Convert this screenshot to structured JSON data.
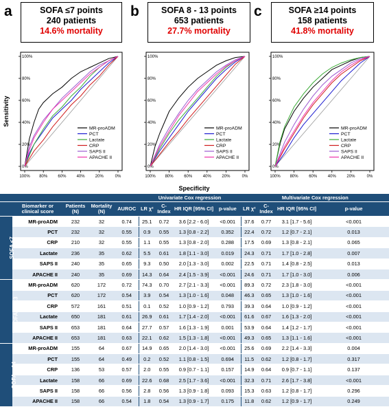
{
  "panels": [
    {
      "letter": "a",
      "title": "SOFA ≤7 points",
      "patients": "240 patients",
      "mortality": "14.6% mortality"
    },
    {
      "letter": "b",
      "title": "SOFA 8 - 13 points",
      "patients": "653 patients",
      "mortality": "27.7% mortality"
    },
    {
      "letter": "c",
      "title": "SOFA ≥14 points",
      "patients": "158 patients",
      "mortality": "41.8% mortality"
    }
  ],
  "axes": {
    "ylabel": "Sensitivity",
    "xlabel": "Specificity"
  },
  "chart_data": [
    {
      "type": "line",
      "panel": "a",
      "x_ticks": [
        "100%",
        "80%",
        "60%",
        "40%",
        "20%",
        "0%"
      ],
      "y_ticks": [
        "100%",
        "80%",
        "60%",
        "40%",
        "20%",
        "0%"
      ],
      "xlim": [
        100,
        0
      ],
      "ylim": [
        0,
        100
      ],
      "diagonal": true,
      "legend": "bottom-right",
      "series": [
        {
          "name": "MR-proADM",
          "color": "#000000",
          "x": [
            100,
            95,
            90,
            85,
            80,
            70,
            60,
            50,
            40,
            30,
            20,
            10,
            0
          ],
          "y": [
            0,
            25,
            40,
            52,
            58,
            66,
            72,
            80,
            86,
            90,
            94,
            98,
            100
          ]
        },
        {
          "name": "PCT",
          "color": "#1a1ad0",
          "x": [
            100,
            95,
            90,
            80,
            70,
            60,
            50,
            40,
            30,
            20,
            10,
            0
          ],
          "y": [
            0,
            12,
            20,
            32,
            44,
            52,
            60,
            70,
            78,
            86,
            94,
            100
          ]
        },
        {
          "name": "Lactate",
          "color": "#3aaa35",
          "x": [
            100,
            95,
            90,
            80,
            70,
            60,
            50,
            40,
            30,
            20,
            10,
            0
          ],
          "y": [
            0,
            10,
            20,
            34,
            46,
            54,
            64,
            72,
            82,
            90,
            96,
            100
          ]
        },
        {
          "name": "CRP",
          "color": "#d01a1a",
          "x": [
            100,
            90,
            80,
            70,
            60,
            50,
            40,
            30,
            20,
            10,
            0
          ],
          "y": [
            0,
            14,
            24,
            36,
            46,
            56,
            64,
            74,
            82,
            92,
            100
          ]
        },
        {
          "name": "SAPS II",
          "color": "#9b59d0",
          "x": [
            100,
            95,
            90,
            80,
            70,
            60,
            50,
            40,
            30,
            20,
            10,
            0
          ],
          "y": [
            0,
            18,
            28,
            42,
            52,
            62,
            70,
            78,
            86,
            92,
            96,
            100
          ]
        },
        {
          "name": "APACHE II",
          "color": "#ee33aa",
          "x": [
            100,
            95,
            90,
            80,
            70,
            60,
            50,
            40,
            30,
            20,
            10,
            0
          ],
          "y": [
            0,
            15,
            26,
            40,
            52,
            60,
            68,
            76,
            84,
            90,
            96,
            100
          ]
        }
      ]
    },
    {
      "type": "line",
      "panel": "b",
      "x_ticks": [
        "100%",
        "80%",
        "60%",
        "40%",
        "20%",
        "0%"
      ],
      "y_ticks": [
        "100%",
        "80%",
        "60%",
        "40%",
        "20%",
        "0%"
      ],
      "xlim": [
        100,
        0
      ],
      "ylim": [
        0,
        100
      ],
      "diagonal": true,
      "legend": "bottom-right",
      "series": [
        {
          "name": "MR-proADM",
          "color": "#000000",
          "x": [
            100,
            95,
            90,
            85,
            80,
            70,
            60,
            50,
            40,
            30,
            20,
            10,
            0
          ],
          "y": [
            0,
            18,
            30,
            40,
            50,
            62,
            72,
            80,
            86,
            92,
            96,
            99,
            100
          ]
        },
        {
          "name": "PCT",
          "color": "#1a1ad0",
          "x": [
            100,
            90,
            80,
            70,
            60,
            50,
            40,
            30,
            20,
            10,
            0
          ],
          "y": [
            0,
            14,
            26,
            38,
            50,
            60,
            70,
            80,
            88,
            95,
            100
          ]
        },
        {
          "name": "Lactate",
          "color": "#3aaa35",
          "x": [
            100,
            90,
            80,
            70,
            60,
            50,
            40,
            30,
            20,
            10,
            0
          ],
          "y": [
            0,
            16,
            30,
            42,
            52,
            62,
            72,
            82,
            90,
            96,
            100
          ]
        },
        {
          "name": "CRP",
          "color": "#d01a1a",
          "x": [
            100,
            90,
            80,
            70,
            60,
            50,
            40,
            30,
            20,
            10,
            0
          ],
          "y": [
            0,
            11,
            22,
            32,
            43,
            53,
            63,
            73,
            83,
            93,
            100
          ]
        },
        {
          "name": "SAPS II",
          "color": "#9b59d0",
          "x": [
            100,
            90,
            80,
            70,
            60,
            50,
            40,
            30,
            20,
            10,
            0
          ],
          "y": [
            0,
            20,
            35,
            48,
            60,
            70,
            78,
            86,
            92,
            97,
            100
          ]
        },
        {
          "name": "APACHE II",
          "color": "#ee33aa",
          "x": [
            100,
            90,
            80,
            70,
            60,
            50,
            40,
            30,
            20,
            10,
            0
          ],
          "y": [
            0,
            18,
            32,
            46,
            57,
            68,
            76,
            84,
            91,
            96,
            100
          ]
        }
      ]
    },
    {
      "type": "line",
      "panel": "c",
      "x_ticks": [
        "100%",
        "80%",
        "60%",
        "40%",
        "20%",
        "0%"
      ],
      "y_ticks": [
        "100%",
        "80%",
        "60%",
        "40%",
        "20%",
        "0%"
      ],
      "xlim": [
        100,
        0
      ],
      "ylim": [
        0,
        100
      ],
      "diagonal": true,
      "legend": "bottom-right",
      "series": [
        {
          "name": "MR-proADM",
          "color": "#000000",
          "x": [
            100,
            95,
            90,
            80,
            70,
            60,
            50,
            40,
            30,
            20,
            10,
            0
          ],
          "y": [
            0,
            20,
            34,
            50,
            62,
            72,
            80,
            88,
            92,
            96,
            99,
            100
          ]
        },
        {
          "name": "PCT",
          "color": "#1a1ad0",
          "x": [
            100,
            90,
            80,
            70,
            60,
            50,
            40,
            30,
            20,
            10,
            0
          ],
          "y": [
            0,
            12,
            26,
            38,
            48,
            58,
            68,
            78,
            86,
            94,
            100
          ]
        },
        {
          "name": "Lactate",
          "color": "#3aaa35",
          "x": [
            100,
            95,
            90,
            80,
            70,
            60,
            50,
            40,
            30,
            20,
            10,
            0
          ],
          "y": [
            0,
            22,
            36,
            54,
            66,
            76,
            84,
            90,
            94,
            97,
            99,
            100
          ]
        },
        {
          "name": "CRP",
          "color": "#d01a1a",
          "x": [
            100,
            90,
            80,
            70,
            60,
            50,
            40,
            30,
            20,
            10,
            0
          ],
          "y": [
            0,
            16,
            30,
            44,
            56,
            66,
            76,
            84,
            90,
            96,
            100
          ]
        },
        {
          "name": "SAPS II",
          "color": "#9b59d0",
          "x": [
            100,
            90,
            80,
            70,
            60,
            50,
            40,
            30,
            20,
            10,
            0
          ],
          "y": [
            0,
            22,
            38,
            52,
            64,
            74,
            82,
            88,
            94,
            98,
            100
          ]
        },
        {
          "name": "APACHE II",
          "color": "#ee33aa",
          "x": [
            100,
            90,
            80,
            70,
            60,
            50,
            40,
            30,
            20,
            10,
            0
          ],
          "y": [
            0,
            18,
            32,
            46,
            58,
            68,
            78,
            86,
            92,
            97,
            100
          ]
        }
      ]
    },
    {
      "type": "table",
      "header_groups": {
        "uni": "Univariate Cox regression",
        "multi": "Multivariate Cox regression"
      },
      "columns": {
        "group": "",
        "marker": "Biomarker or clinical score",
        "patients": "Patients (N)",
        "mortality": "Mortality (N)",
        "auroc": "AUROC",
        "lr": "LR χ²",
        "cindex": "C-Index",
        "hr": "HR IQR [95% CI]",
        "p": "p-value"
      },
      "groups": [
        {
          "name": "SOFA ≤7",
          "rows": [
            [
              "MR-proADM",
              "232",
              "32",
              "0.74",
              "25.1",
              "0.72",
              "3.6 [2.2 - 6.0]",
              "<0.001",
              "37.6",
              "0.77",
              "3.1 [1.7 - 5.6]",
              "<0.001"
            ],
            [
              "PCT",
              "232",
              "32",
              "0.55",
              "0.9",
              "0.55",
              "1.3 [0.8 - 2.2]",
              "0.352",
              "22.4",
              "0.72",
              "1.2 [0.7 - 2.1]",
              "0.013"
            ],
            [
              "CRP",
              "210",
              "32",
              "0.55",
              "1.1",
              "0.55",
              "1.3 [0.8 - 2.0]",
              "0.288",
              "17.5",
              "0.69",
              "1.3 [0.8 - 2.1]",
              "0.065"
            ],
            [
              "Lactate",
              "236",
              "35",
              "0.62",
              "5.5",
              "0.61",
              "1.8 [1.1 - 3.0]",
              "0.019",
              "24.3",
              "0.71",
              "1.7 [1.0 - 2.8]",
              "0.007"
            ],
            [
              "SAPS II",
              "240",
              "35",
              "0.65",
              "9.3",
              "0.50",
              "2.0 [1.3 - 3.0]",
              "0.002",
              "22.5",
              "0.71",
              "1.4 [0.8 - 2.5]",
              "0.013"
            ],
            [
              "APACHE II",
              "240",
              "35",
              "0.69",
              "14.3",
              "0.64",
              "2.4 [1.5 - 3.9]",
              "<0.001",
              "24.6",
              "0.71",
              "1.7 [1.0 - 3.0]",
              "0.006"
            ]
          ]
        },
        {
          "name": "SOFA 8 - 13",
          "rows": [
            [
              "MR-proADM",
              "620",
              "172",
              "0.72",
              "74.3",
              "0.70",
              "2.7 [2.1 - 3.3]",
              "<0.001",
              "89.3",
              "0.72",
              "2.3 [1.8 - 3.0]",
              "<0.001"
            ],
            [
              "PCT",
              "620",
              "172",
              "0.54",
              "3.9",
              "0.54",
              "1.3 [1.0 - 1.6]",
              "0.048",
              "46.3",
              "0.65",
              "1.3 [1.0 - 1.6]",
              "<0.001"
            ],
            [
              "CRP",
              "572",
              "161",
              "0.51",
              "0.1",
              "0.52",
              "1.0 [0.9 - 1.2]",
              "0.793",
              "39.3",
              "0.64",
              "1.0 [0.9 - 1.2]",
              "<0.001"
            ],
            [
              "Lactate",
              "650",
              "181",
              "0.61",
              "26.9",
              "0.61",
              "1.7 [1.4 - 2.0]",
              "<0.001",
              "61.6",
              "0.67",
              "1.6 [1.3 - 2.0]",
              "<0.001"
            ],
            [
              "SAPS II",
              "653",
              "181",
              "0.64",
              "27.7",
              "0.57",
              "1.6 [1.3 - 1.9]",
              "0.001",
              "53.9",
              "0.64",
              "1.4 [1.2 - 1.7]",
              "<0.001"
            ],
            [
              "APACHE II",
              "653",
              "181",
              "0.63",
              "22.1",
              "0.62",
              "1.5 [1.3 - 1.8]",
              "<0.001",
              "49.3",
              "0.65",
              "1.3 [1.1 - 1.6]",
              "<0.001"
            ]
          ]
        },
        {
          "name": "SOFA ≥ 14",
          "rows": [
            [
              "MR-proADM",
              "155",
              "64",
              "0.67",
              "14.9",
              "0.65",
              "2.0 [1.4 - 3.0]",
              "<0.001",
              "25.6",
              "0.69",
              "2.2 [1.4 - 3.3]",
              "0.004"
            ],
            [
              "PCT",
              "155",
              "64",
              "0.49",
              "0.2",
              "0.52",
              "1.1 [0.8 - 1.5]",
              "0.694",
              "11.5",
              "0.62",
              "1.2 [0.8 - 1.7]",
              "0.317"
            ],
            [
              "CRP",
              "136",
              "53",
              "0.57",
              "2.0",
              "0.55",
              "0.9 [0.7 - 1.1]",
              "0.157",
              "14.9",
              "0.64",
              "0.9 [0.7 - 1.1]",
              "0.137"
            ],
            [
              "Lactate",
              "158",
              "66",
              "0.69",
              "22.6",
              "0.68",
              "2.5 [1.7 - 3.6]",
              "<0.001",
              "32.3",
              "0.71",
              "2.6 [1.7 - 3.8]",
              "<0.001"
            ],
            [
              "SAPS II",
              "158",
              "66",
              "0.56",
              "2.8",
              "0.56",
              "1.3 [0.9 - 1.8]",
              "0.093",
              "15.3",
              "0.63",
              "1.2 [0.8 - 1.7]",
              "0.296"
            ],
            [
              "APACHE II",
              "158",
              "66",
              "0.54",
              "1.8",
              "0.54",
              "1.3 [0.9 - 1.7]",
              "0.175",
              "11.8",
              "0.62",
              "1.2 [0.9 - 1.7]",
              "0.249"
            ]
          ]
        }
      ]
    }
  ]
}
